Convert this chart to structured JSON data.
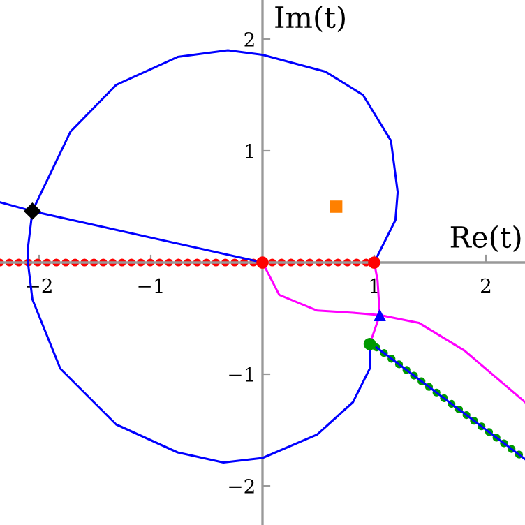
{
  "chart_data": {
    "type": "line",
    "xlabel": "Re(t)",
    "ylabel": "Im(t)",
    "xlim": [
      -2.35,
      2.35
    ],
    "ylim": [
      -2.35,
      2.35
    ],
    "xticks": [
      {
        "value": -2,
        "label": "−2"
      },
      {
        "value": -1,
        "label": "−1"
      },
      {
        "value": 1,
        "label": "1"
      },
      {
        "value": 2,
        "label": "2"
      }
    ],
    "yticks": [
      {
        "value": -2,
        "label": "−2"
      },
      {
        "value": -1,
        "label": "−1"
      },
      {
        "value": 1,
        "label": "1"
      },
      {
        "value": 2,
        "label": "2"
      }
    ],
    "grid": false,
    "legend": false,
    "series": [
      {
        "color": "#ff0000",
        "line_style": "dotted",
        "x": [
          -2.35,
          1
        ],
        "values": [
          0,
          0
        ]
      },
      {
        "color": "#009900",
        "line_style": "dotted",
        "x": [
          1.02,
          2.35
        ],
        "values": [
          -0.76,
          -1.76
        ]
      },
      {
        "type": "line",
        "color": "#0000ff",
        "x": [
          1,
          1.19,
          1.21,
          1.15,
          0.9,
          0.56,
          0,
          -0.31,
          -0.76,
          -1.31,
          -1.72,
          -2.06,
          -2.1,
          -2.1,
          -2.06,
          -1.81,
          -1.31,
          -0.76,
          -0.35,
          0,
          0.49,
          0.81,
          0.96,
          0.96
        ],
        "values": [
          0,
          0.38,
          0.63,
          1.09,
          1.5,
          1.71,
          1.86,
          1.9,
          1.84,
          1.59,
          1.17,
          0.46,
          0.13,
          0,
          -0.33,
          -0.95,
          -1.45,
          -1.7,
          -1.79,
          -1.75,
          -1.54,
          -1.25,
          -0.95,
          -0.75
        ]
      },
      {
        "type": "line",
        "color": "#0000ff",
        "x": [
          -2.35,
          -2.06,
          0
        ],
        "values": [
          0.54,
          0.46,
          0
        ]
      },
      {
        "type": "line",
        "color": "#0000ff",
        "x": [
          1.02,
          2.35
        ],
        "values": [
          -0.76,
          -1.76
        ]
      },
      {
        "type": "line",
        "color": "#ff00ff",
        "x": [
          0,
          0.15,
          0.49,
          0.81,
          1.05,
          1.4,
          1.81,
          2.35
        ],
        "values": [
          0,
          -0.29,
          -0.43,
          -0.45,
          -0.47,
          -0.54,
          -0.79,
          -1.25
        ]
      },
      {
        "type": "line",
        "color": "#ff00ff",
        "x": [
          1,
          1.03,
          1.05,
          0.96
        ],
        "values": [
          0,
          -0.16,
          -0.47,
          -0.73
        ]
      },
      {
        "type": "scatter",
        "color": "#ff0000",
        "marker": "circle",
        "x": [
          0,
          1
        ],
        "values": [
          0,
          0
        ]
      },
      {
        "type": "scatter",
        "color": "#000000",
        "marker": "diamond",
        "x": [
          -2.06
        ],
        "values": [
          0.46
        ]
      },
      {
        "type": "scatter",
        "color": "#ff8000",
        "marker": "square",
        "x": [
          0.66
        ],
        "values": [
          0.5
        ]
      },
      {
        "type": "scatter",
        "color": "#0000ff",
        "marker": "triangle",
        "x": [
          1.05
        ],
        "values": [
          -0.47
        ]
      },
      {
        "type": "scatter",
        "color": "#009900",
        "marker": "circle",
        "x": [
          0.96
        ],
        "values": [
          -0.73
        ]
      }
    ]
  }
}
